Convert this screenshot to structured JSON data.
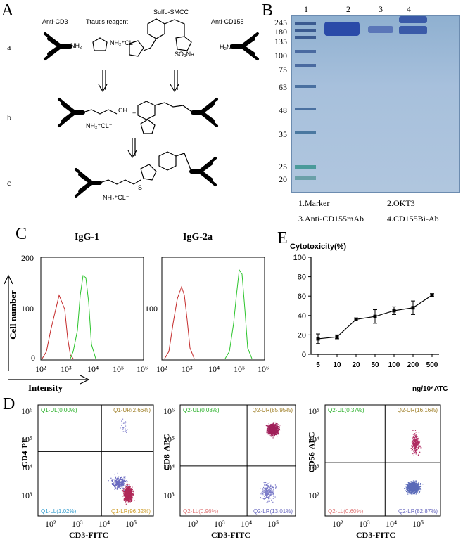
{
  "panelA": {
    "letter": "A",
    "rows": [
      "a",
      "b",
      "c"
    ],
    "labels": {
      "antiCD3": "Anti-CD3",
      "traut": "Ttaut’s reagent",
      "smcc": "Sulfo-SMCC",
      "antiCD155": "Anti-CD155",
      "nh2_a": "NH₂",
      "nh2cl": "NH₂⁺CL⁻",
      "so3na": "SO₃Na",
      "h2n": "H₂N",
      "ch": "CH",
      "plus": "+",
      "nh2cl_b": "NH₂⁺CL⁻",
      "nh2cl_c": "NH₂⁺CL⁻",
      "s": "S"
    }
  },
  "panelB": {
    "letter": "B",
    "lanes": [
      "1",
      "2",
      "3",
      "4"
    ],
    "markers": [
      "245",
      "180",
      "135",
      "100",
      "75",
      "63",
      "48",
      "35",
      "25",
      "20"
    ],
    "legend": [
      "1.Marker",
      "2.OKT3",
      "3.Anti-CD155mAb",
      "4.CD155Bi-Ab"
    ]
  },
  "panelC": {
    "letter": "C",
    "titles": [
      "IgG-1",
      "IgG-2a"
    ],
    "yticks1": [
      "200",
      "100",
      "0"
    ],
    "yticks2": [
      "100"
    ],
    "xticks": [
      "10²",
      "10³",
      "10⁴",
      "10⁵",
      "10⁶"
    ],
    "ylabel": "Cell number",
    "xlabel": "Intensity"
  },
  "panelE": {
    "letter": "E",
    "ytitle": "Cytotoxicity(%)",
    "xunit": "ng/10⁶ATC"
  },
  "chart_data": {
    "type": "line",
    "title": "",
    "ylabel": "Cytotoxicity(%)",
    "xlabel": "ng/10⁶ATC",
    "categories": [
      "5",
      "10",
      "20",
      "50",
      "100",
      "200",
      "500"
    ],
    "values": [
      16,
      18,
      36,
      39,
      45,
      48,
      61
    ],
    "errors": [
      5,
      2,
      1.5,
      7,
      4,
      7,
      1.5
    ],
    "ylim": [
      0,
      100
    ],
    "yticks": [
      0,
      20,
      40,
      60,
      80,
      100
    ]
  },
  "panelD": {
    "letter": "D",
    "xlabel": "CD3-FITC",
    "xticks": [
      "10²",
      "10³",
      "10⁴",
      "10⁵"
    ],
    "plots": [
      {
        "ylabel": "CD4-PE",
        "yticks": [
          "10⁶",
          "10⁵",
          "10⁴",
          "10³"
        ],
        "ul": "Q1-UL(0.00%)",
        "ur": "Q1-UR(2.66%)",
        "ll": "Q1-LL(1.02%)",
        "lr": "Q1-LR(96.32%)"
      },
      {
        "ylabel": "CD8-APC",
        "yticks": [
          "10⁶",
          "10⁵",
          "10⁴",
          "10³"
        ],
        "ul": "Q2-UL(0.08%)",
        "ur": "Q2-UR(85.95%)",
        "ll": "Q2-LL(0.96%)",
        "lr": "Q2-LR(13.01%)"
      },
      {
        "ylabel": "CD56-APC",
        "yticks": [
          "10⁵",
          "10⁴",
          "10³",
          "10²"
        ],
        "ul": "Q2-UL(0.37%)",
        "ur": "Q2-UR(16.16%)",
        "ll": "Q2-LL(0.60%)",
        "lr": "Q2-LR(82.87%)"
      }
    ]
  },
  "colors": {
    "red": "#c42a2a",
    "green": "#2bc42b",
    "magenta": "#a0205a",
    "blue": "#5a6ab8",
    "gel": "#a7c0dc"
  }
}
